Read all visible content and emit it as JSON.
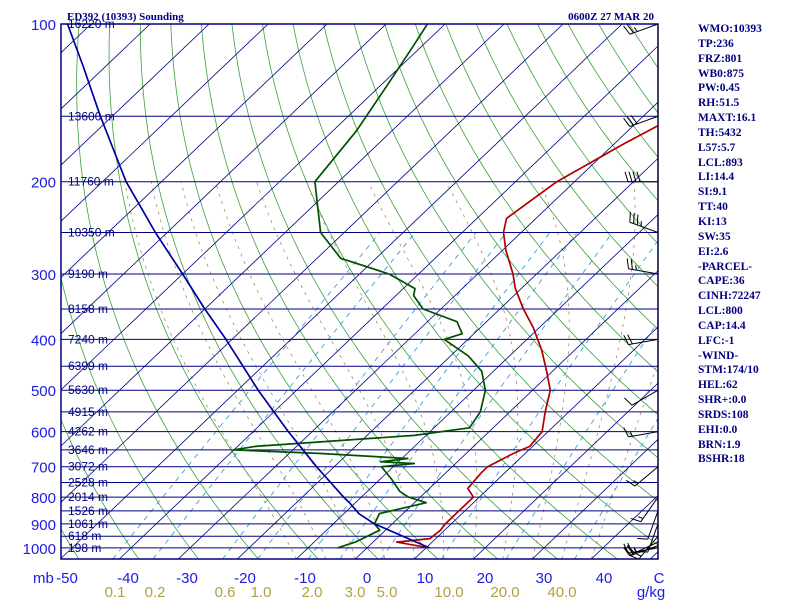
{
  "header": {
    "station": "ED392 (10393) Sounding",
    "time": "0600Z 27 MAR 20"
  },
  "indices": [
    "WMO:10393",
    "TP:236",
    "FRZ:801",
    "WB0:875",
    "PW:0.45",
    "RH:51.5",
    "MAXT:16.1",
    "TH:5432",
    "L57:5.7",
    "LCL:893",
    "LI:14.4",
    "SI:9.1",
    "TT:40",
    "KI:13",
    "SW:35",
    "EI:2.6",
    "-PARCEL-",
    "CAPE:36",
    "CINH:72247",
    "LCL:800",
    "CAP:14.4",
    "LFC:-1",
    "-WIND-",
    "STM:174/10",
    "HEL:62",
    "SHR+:0.0",
    "SRDS:108",
    "EHI:0.0",
    "BRN:1.9",
    "BSHR:18"
  ],
  "colors": {
    "frame": "#000080",
    "isobar": "#000080",
    "dry_adiabat": "#3aa03a",
    "isotherm": "#000080",
    "mixing_ratio": "#3aa0d8",
    "moist_adiabat": "#a09060",
    "temperature": "#b00000",
    "dewpoint": "#005000",
    "parcel": "#0000a0",
    "wind_barb": "#000000"
  },
  "chart_data": {
    "type": "line",
    "title": "ED392 (10393) Sounding",
    "x_axis_units": "mb",
    "x_ticks": [
      "-50",
      "-40",
      "-30",
      "-20",
      "-10",
      "0",
      "10",
      "20",
      "30",
      "40",
      "C"
    ],
    "mixing_ratio_labels": [
      "0.1",
      "0.2",
      "0.6",
      "1.0",
      "2.0",
      "3.0",
      "5.0",
      "10.0",
      "20.0",
      "40.0",
      "g/kg"
    ],
    "pressure_levels": [
      {
        "p": 100,
        "label": "100",
        "height": "16220 m"
      },
      {
        "p": 150,
        "label": "",
        "height": "13600 m"
      },
      {
        "p": 200,
        "label": "200",
        "height": "11760 m"
      },
      {
        "p": 250,
        "label": "",
        "height": "10350 m"
      },
      {
        "p": 300,
        "label": "300",
        "height": "9190 m"
      },
      {
        "p": 350,
        "label": "",
        "height": "8158 m"
      },
      {
        "p": 400,
        "label": "400",
        "height": "7240 m"
      },
      {
        "p": 450,
        "label": "",
        "height": "6399 m"
      },
      {
        "p": 500,
        "label": "500",
        "height": "5630 m"
      },
      {
        "p": 550,
        "label": "",
        "height": "4915 m"
      },
      {
        "p": 600,
        "label": "600",
        "height": "4262 m"
      },
      {
        "p": 650,
        "label": "",
        "height": "3646 m"
      },
      {
        "p": 700,
        "label": "700",
        "height": "3072 m"
      },
      {
        "p": 750,
        "label": "",
        "height": "2528 m"
      },
      {
        "p": 800,
        "label": "800",
        "height": "2014 m"
      },
      {
        "p": 850,
        "label": "",
        "height": "1526 m"
      },
      {
        "p": 900,
        "label": "900",
        "height": "1061 m"
      },
      {
        "p": 950,
        "label": "",
        "height": "618 m"
      },
      {
        "p": 1000,
        "label": "1000",
        "height": "198 m"
      }
    ],
    "series": [
      {
        "key": "temperature",
        "points": [
          [
            1000,
            10.6
          ],
          [
            975,
            4.0
          ],
          [
            960,
            9.0
          ],
          [
            925,
            9.3
          ],
          [
            900,
            9.0
          ],
          [
            850,
            9.0
          ],
          [
            800,
            9.0
          ],
          [
            770,
            6.5
          ],
          [
            720,
            6.0
          ],
          [
            700,
            6.0
          ],
          [
            660,
            8.0
          ],
          [
            640,
            9.5
          ],
          [
            600,
            9.0
          ],
          [
            550,
            6.0
          ],
          [
            500,
            3.0
          ],
          [
            460,
            -1.0
          ],
          [
            420,
            -5.5
          ],
          [
            380,
            -11.0
          ],
          [
            350,
            -16.0
          ],
          [
            320,
            -21.0
          ],
          [
            300,
            -24.0
          ],
          [
            270,
            -29.5
          ],
          [
            250,
            -33.0
          ],
          [
            235,
            -35.0
          ],
          [
            200,
            -33.0
          ],
          [
            170,
            -28.5
          ],
          [
            150,
            -24.5
          ],
          [
            130,
            -20.0
          ],
          [
            115,
            -16.5
          ],
          [
            100,
            -12.5
          ]
        ]
      },
      {
        "key": "dewpoint",
        "points": [
          [
            1000,
            -5.0
          ],
          [
            975,
            -3.0
          ],
          [
            950,
            -2.0
          ],
          [
            925,
            -1.0
          ],
          [
            900,
            -3.0
          ],
          [
            860,
            -4.0
          ],
          [
            820,
            2.0
          ],
          [
            800,
            -2.0
          ],
          [
            780,
            -4.5
          ],
          [
            740,
            -8.0
          ],
          [
            700,
            -12.0
          ],
          [
            690,
            -7.0
          ],
          [
            685,
            -13.0
          ],
          [
            675,
            -9.0
          ],
          [
            660,
            -25.0
          ],
          [
            650,
            -40.0
          ],
          [
            640,
            -37.0
          ],
          [
            610,
            -12.0
          ],
          [
            590,
            -4.0
          ],
          [
            550,
            -5.0
          ],
          [
            500,
            -8.0
          ],
          [
            460,
            -12.0
          ],
          [
            430,
            -17.0
          ],
          [
            400,
            -24.0
          ],
          [
            390,
            -22.0
          ],
          [
            370,
            -25.0
          ],
          [
            350,
            -33.0
          ],
          [
            330,
            -37.0
          ],
          [
            320,
            -38.0
          ],
          [
            300,
            -45.0
          ],
          [
            280,
            -56.0
          ],
          [
            250,
            -64.0
          ],
          [
            200,
            -74.0
          ],
          [
            160,
            -76.0
          ],
          [
            130,
            -79.0
          ],
          [
            110,
            -81.5
          ],
          [
            100,
            -83.0
          ]
        ]
      },
      {
        "key": "parcel",
        "points": [
          [
            1000,
            10.6
          ],
          [
            900,
            -3.0
          ],
          [
            860,
            -7.5
          ],
          [
            820,
            -11.0
          ],
          [
            800,
            -13.0
          ],
          [
            700,
            -23.0
          ],
          [
            600,
            -34.0
          ],
          [
            500,
            -46.5
          ],
          [
            400,
            -61.0
          ],
          [
            350,
            -70.0
          ],
          [
            300,
            -80.0
          ],
          [
            250,
            -92.0
          ],
          [
            220,
            -100.0
          ],
          [
            200,
            -106.0
          ],
          [
            150,
            -122.0
          ],
          [
            120,
            -134.0
          ],
          [
            100,
            -144.0
          ]
        ]
      }
    ],
    "wind_barbs": [
      {
        "p": 1000,
        "dir": 260,
        "speed": 25
      },
      {
        "p": 990,
        "dir": 250,
        "speed": 25
      },
      {
        "p": 975,
        "dir": 245,
        "speed": 20
      },
      {
        "p": 950,
        "dir": 220,
        "speed": 15
      },
      {
        "p": 900,
        "dir": 200,
        "speed": 10
      },
      {
        "p": 850,
        "dir": 200,
        "speed": 10
      },
      {
        "p": 800,
        "dir": 215,
        "speed": 15
      },
      {
        "p": 700,
        "dir": 230,
        "speed": 15
      },
      {
        "p": 600,
        "dir": 260,
        "speed": 15
      },
      {
        "p": 500,
        "dir": 240,
        "speed": 10
      },
      {
        "p": 400,
        "dir": 260,
        "speed": 20
      },
      {
        "p": 300,
        "dir": 280,
        "speed": 25
      },
      {
        "p": 250,
        "dir": 290,
        "speed": 35
      },
      {
        "p": 200,
        "dir": 270,
        "speed": 40
      },
      {
        "p": 150,
        "dir": 250,
        "speed": 30
      },
      {
        "p": 100,
        "dir": 250,
        "speed": 25
      }
    ]
  }
}
